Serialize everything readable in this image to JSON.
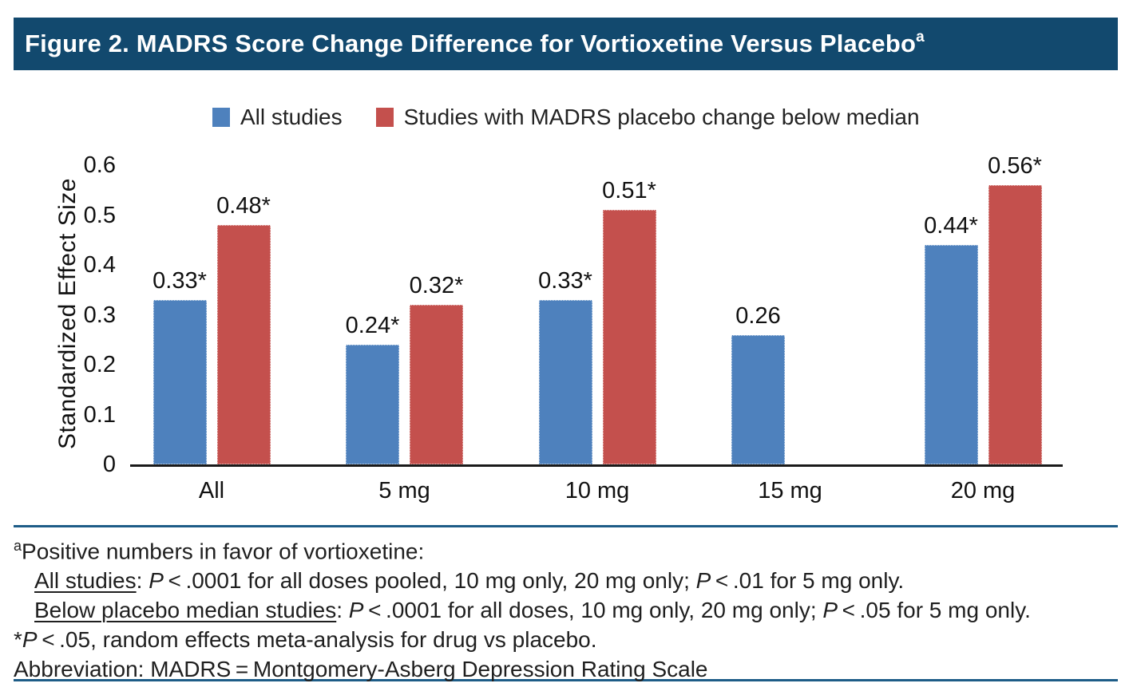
{
  "header": {
    "title": "Figure 2. MADRS Score Change Difference for Vortioxetine Versus Placebo",
    "title_superscript": "a"
  },
  "legend": [
    {
      "label": "All studies",
      "color": "#4e81bd"
    },
    {
      "label": "Studies with MADRS placebo change below median",
      "color": "#c4504d"
    }
  ],
  "chart_data": {
    "type": "bar",
    "title": "",
    "categories": [
      "All",
      "5 mg",
      "10 mg",
      "15 mg",
      "20 mg"
    ],
    "series": [
      {
        "name": "All studies",
        "color": "#4e81bd",
        "values": [
          0.33,
          0.24,
          0.33,
          0.26,
          0.44
        ],
        "labels": [
          "0.33*",
          "0.24*",
          "0.33*",
          "0.26",
          "0.44*"
        ]
      },
      {
        "name": "Studies with MADRS placebo change below median",
        "color": "#c4504d",
        "values": [
          0.48,
          0.32,
          0.51,
          null,
          0.56
        ],
        "labels": [
          "0.48*",
          "0.32*",
          "0.51*",
          null,
          "0.56*"
        ]
      }
    ],
    "xlabel": "",
    "ylabel": "Standardized Effect Size",
    "ylim": [
      0,
      0.6
    ],
    "yticks": [
      0,
      0.1,
      0.2,
      0.3,
      0.4,
      0.5,
      0.6
    ],
    "ytick_labels": [
      "0",
      "0.1",
      "0.2",
      "0.3",
      "0.4",
      "0.5",
      "0.6"
    ],
    "grid": false,
    "legend_position": "top"
  },
  "footnotes": {
    "note_sup": "a",
    "note_intro": "Positive numbers in favor of vortioxetine:",
    "all_studies": {
      "label": "All studies",
      "colon": ": ",
      "p1": "P",
      "t1": " < .0001 for all doses pooled, 10 mg only, 20 mg only; ",
      "p2": "P",
      "t2": " < .01 for 5 mg only."
    },
    "below_median": {
      "label": "Below placebo median studies",
      "colon": ": ",
      "p1": "P",
      "t1": " < .0001 for all doses, 10 mg only, 20 mg only; ",
      "p2": "P",
      "t2": " < .05 for 5 mg only."
    },
    "star_note": {
      "star": "*",
      "p": "P",
      "t": " < .05, random effects meta-analysis for drug vs placebo."
    },
    "abbreviation": "Abbreviation: MADRS = Montgomery-Asberg Depression Rating Scale"
  },
  "colors": {
    "header_bg": "#12496e",
    "rule": "#1d5c87",
    "axis": "#1a1a1a"
  }
}
